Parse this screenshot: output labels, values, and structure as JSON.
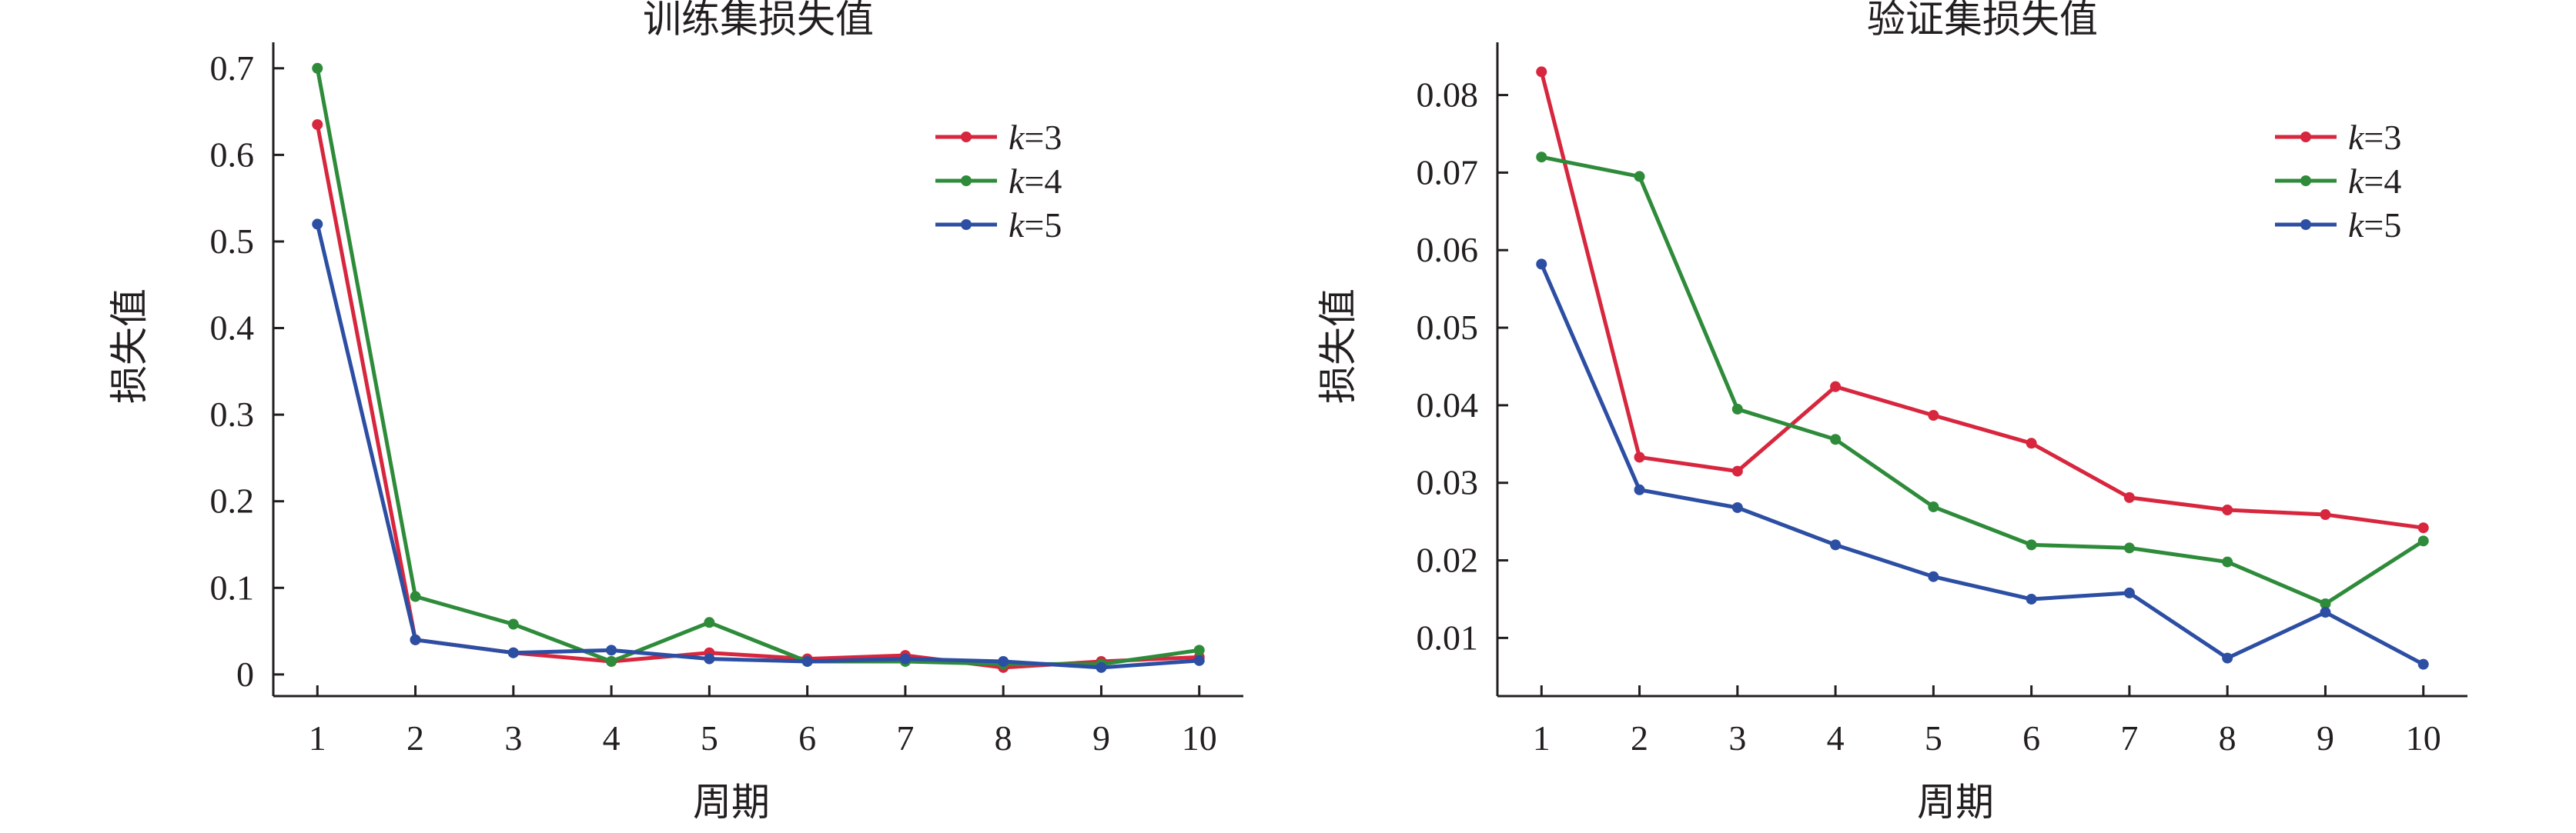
{
  "colors": {
    "k3": "#d7263d",
    "k4": "#2e8b3a",
    "k5": "#2c4ea3",
    "axis": "#231f20"
  },
  "chart_data": [
    {
      "type": "line",
      "title": "训练集损失值",
      "xlabel": "周期",
      "ylabel": "损失值",
      "x": [
        1,
        2,
        3,
        4,
        5,
        6,
        7,
        8,
        9,
        10
      ],
      "ylim": [
        -0.025,
        0.73
      ],
      "xlim": [
        0.55,
        10.45
      ],
      "yticks": [
        0,
        0.1,
        0.2,
        0.3,
        0.4,
        0.5,
        0.6,
        0.7
      ],
      "ytick_labels": [
        "0",
        "0.1",
        "0.2",
        "0.3",
        "0.4",
        "0.5",
        "0.6",
        "0.7"
      ],
      "xticks": [
        1,
        2,
        3,
        4,
        5,
        6,
        7,
        8,
        9,
        10
      ],
      "xtick_labels": [
        "1",
        "2",
        "3",
        "4",
        "5",
        "6",
        "7",
        "8",
        "9",
        "10"
      ],
      "legend_position": "top-right",
      "grid": false,
      "series": [
        {
          "name": "k=3",
          "k": "k",
          "eq": "=3",
          "color": "#d7263d",
          "values": [
            0.635,
            0.04,
            0.025,
            0.015,
            0.025,
            0.018,
            0.022,
            0.008,
            0.015,
            0.02
          ]
        },
        {
          "name": "k=4",
          "k": "k",
          "eq": "=4",
          "color": "#2e8b3a",
          "values": [
            0.7,
            0.09,
            0.058,
            0.015,
            0.06,
            0.015,
            0.015,
            0.012,
            0.012,
            0.028
          ]
        },
        {
          "name": "k=5",
          "k": "k",
          "eq": "=5",
          "color": "#2c4ea3",
          "values": [
            0.52,
            0.04,
            0.025,
            0.028,
            0.018,
            0.015,
            0.018,
            0.015,
            0.008,
            0.016
          ]
        }
      ]
    },
    {
      "type": "line",
      "title": "验证集损失值",
      "xlabel": "周期",
      "ylabel": "损失值",
      "x": [
        1,
        2,
        3,
        4,
        5,
        6,
        7,
        8,
        9,
        10
      ],
      "ylim": [
        0.0025,
        0.0868
      ],
      "xlim": [
        0.55,
        10.45
      ],
      "yticks": [
        0.01,
        0.02,
        0.03,
        0.04,
        0.05,
        0.06,
        0.07,
        0.08
      ],
      "ytick_labels": [
        "0.01",
        "0.02",
        "0.03",
        "0.04",
        "0.05",
        "0.06",
        "0.07",
        "0.08"
      ],
      "xticks": [
        1,
        2,
        3,
        4,
        5,
        6,
        7,
        8,
        9,
        10
      ],
      "xtick_labels": [
        "1",
        "2",
        "3",
        "4",
        "5",
        "6",
        "7",
        "8",
        "9",
        "10"
      ],
      "legend_position": "top-right",
      "grid": false,
      "series": [
        {
          "name": "k=3",
          "k": "k",
          "eq": "=3",
          "color": "#d7263d",
          "values": [
            0.083,
            0.0333,
            0.0315,
            0.0424,
            0.0387,
            0.0351,
            0.0281,
            0.0265,
            0.0259,
            0.0242
          ]
        },
        {
          "name": "k=4",
          "k": "k",
          "eq": "=4",
          "color": "#2e8b3a",
          "values": [
            0.072,
            0.0695,
            0.0395,
            0.0356,
            0.0269,
            0.022,
            0.0216,
            0.0198,
            0.0144,
            0.0225
          ]
        },
        {
          "name": "k=5",
          "k": "k",
          "eq": "=5",
          "color": "#2c4ea3",
          "values": [
            0.0582,
            0.0291,
            0.0268,
            0.022,
            0.0179,
            0.015,
            0.0158,
            0.0074,
            0.0133,
            0.0066
          ]
        }
      ]
    }
  ]
}
